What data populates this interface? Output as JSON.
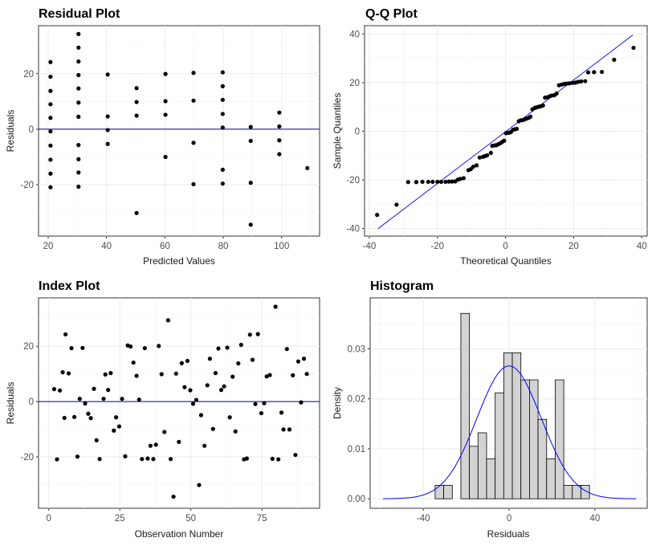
{
  "chart_data": [
    {
      "type": "scatter",
      "title": "Residual Plot",
      "xlabel": "Predicted Values",
      "ylabel": "Residuals",
      "xlim": [
        16.7,
        113.0
      ],
      "ylim": [
        -38.5,
        37.3
      ],
      "xticks": [
        20,
        40,
        60,
        80,
        100
      ],
      "yticks": [
        -20,
        0,
        20
      ],
      "grid": true,
      "hline": 0,
      "hline_color": "#00008b",
      "points": [
        [
          20.8,
          24.2
        ],
        [
          20.8,
          18.9
        ],
        [
          20.8,
          13.8
        ],
        [
          20.8,
          9.0
        ],
        [
          20.8,
          4.1
        ],
        [
          20.8,
          -0.8
        ],
        [
          20.8,
          -5.9
        ],
        [
          20.8,
          -11.0
        ],
        [
          20.8,
          -16.0
        ],
        [
          20.8,
          -20.9
        ],
        [
          30.4,
          34.3
        ],
        [
          30.4,
          29.4
        ],
        [
          30.4,
          24.4
        ],
        [
          30.4,
          19.5
        ],
        [
          30.4,
          14.7
        ],
        [
          30.4,
          9.6
        ],
        [
          30.4,
          4.5
        ],
        [
          30.4,
          -5.7
        ],
        [
          30.4,
          -10.8
        ],
        [
          30.4,
          -15.6
        ],
        [
          30.4,
          -20.7
        ],
        [
          40.4,
          19.7
        ],
        [
          40.4,
          4.6
        ],
        [
          40.4,
          -0.3
        ],
        [
          40.4,
          -5.3
        ],
        [
          50.3,
          14.8
        ],
        [
          50.3,
          9.8
        ],
        [
          50.3,
          4.9
        ],
        [
          50.3,
          -30.2
        ],
        [
          60.2,
          19.9
        ],
        [
          60.2,
          10.1
        ],
        [
          60.2,
          5.2
        ],
        [
          60.2,
          -10.0
        ],
        [
          69.8,
          20.3
        ],
        [
          69.8,
          10.3
        ],
        [
          69.8,
          -4.9
        ],
        [
          69.8,
          -19.8
        ],
        [
          79.8,
          20.5
        ],
        [
          79.8,
          15.5
        ],
        [
          79.8,
          10.6
        ],
        [
          79.8,
          5.5
        ],
        [
          79.8,
          0.6
        ],
        [
          79.8,
          -14.6
        ],
        [
          79.8,
          -19.6
        ],
        [
          89.4,
          0.8
        ],
        [
          89.4,
          -4.2
        ],
        [
          89.4,
          -19.3
        ],
        [
          89.4,
          -34.4
        ],
        [
          99.2,
          6.0
        ],
        [
          99.2,
          1.0
        ],
        [
          99.2,
          -4.0
        ],
        [
          99.2,
          -9.0
        ],
        [
          108.8,
          -14.0
        ]
      ]
    },
    {
      "type": "scatter",
      "title": "Q-Q Plot",
      "xlabel": "Theoretical Quantiles",
      "ylabel": "Sample Quantiles",
      "xlim": [
        -41.4,
        41.6
      ],
      "ylim": [
        -43.1,
        43.4
      ],
      "xticks": [
        -40,
        -20,
        0,
        20,
        40
      ],
      "yticks": [
        -40,
        -20,
        0,
        20,
        40
      ],
      "grid": true,
      "reference_line": [
        [
          -37.4,
          -40.0
        ],
        [
          37.4,
          39.6
        ]
      ],
      "line_color": "#0000ff",
      "points": [
        [
          -37.7,
          -34.4
        ],
        [
          -32.0,
          -30.2
        ],
        [
          -28.6,
          -20.9
        ],
        [
          -26.2,
          -20.9
        ],
        [
          -24.4,
          -20.8
        ],
        [
          -22.7,
          -20.8
        ],
        [
          -21.4,
          -20.8
        ],
        [
          -20.0,
          -20.8
        ],
        [
          -18.9,
          -20.8
        ],
        [
          -17.6,
          -20.8
        ],
        [
          -16.6,
          -20.7
        ],
        [
          -15.7,
          -20.7
        ],
        [
          -14.8,
          -20.6
        ],
        [
          -14.0,
          -19.9
        ],
        [
          -13.3,
          -19.6
        ],
        [
          -12.3,
          -19.3
        ],
        [
          -10.9,
          -16.0
        ],
        [
          -10.2,
          -15.6
        ],
        [
          -9.5,
          -14.6
        ],
        [
          -8.5,
          -14.0
        ],
        [
          -7.6,
          -10.8
        ],
        [
          -6.6,
          -10.5
        ],
        [
          -6.0,
          -10.2
        ],
        [
          -5.4,
          -9.9
        ],
        [
          -4.3,
          -8.9
        ],
        [
          -3.9,
          -6.0
        ],
        [
          -3.1,
          -5.8
        ],
        [
          -2.6,
          -5.7
        ],
        [
          -2.1,
          -5.3
        ],
        [
          -1.5,
          -4.9
        ],
        [
          -1.0,
          -4.4
        ],
        [
          -0.4,
          -3.9
        ],
        [
          0.1,
          -0.8
        ],
        [
          0.6,
          -0.7
        ],
        [
          1.1,
          -0.6
        ],
        [
          1.6,
          -0.3
        ],
        [
          2.2,
          0.6
        ],
        [
          2.7,
          0.8
        ],
        [
          3.3,
          1.0
        ],
        [
          3.9,
          4.1
        ],
        [
          4.5,
          4.5
        ],
        [
          5.1,
          4.6
        ],
        [
          5.6,
          4.9
        ],
        [
          6.2,
          5.2
        ],
        [
          6.8,
          5.5
        ],
        [
          7.3,
          6.0
        ],
        [
          7.9,
          9.0
        ],
        [
          8.6,
          9.6
        ],
        [
          9.1,
          9.8
        ],
        [
          9.8,
          10.1
        ],
        [
          10.4,
          10.3
        ],
        [
          11.0,
          10.6
        ],
        [
          11.6,
          13.8
        ],
        [
          12.3,
          14.0
        ],
        [
          13.0,
          14.4
        ],
        [
          13.6,
          14.7
        ],
        [
          14.3,
          14.8
        ],
        [
          15.0,
          15.5
        ],
        [
          15.7,
          18.9
        ],
        [
          16.5,
          19.2
        ],
        [
          17.3,
          19.5
        ],
        [
          18.0,
          19.6
        ],
        [
          18.8,
          19.7
        ],
        [
          19.7,
          19.9
        ],
        [
          20.5,
          20.0
        ],
        [
          21.3,
          20.3
        ],
        [
          22.2,
          20.5
        ],
        [
          23.4,
          20.6
        ],
        [
          24.3,
          24.2
        ],
        [
          26.0,
          24.3
        ],
        [
          28.3,
          24.4
        ],
        [
          31.9,
          29.4
        ],
        [
          37.6,
          34.3
        ]
      ]
    },
    {
      "type": "scatter",
      "title": "Index Plot",
      "xlabel": "Observation Number",
      "ylabel": "Residuals",
      "xlim": [
        -3.6,
        95.3
      ],
      "ylim": [
        -38.6,
        37.5
      ],
      "xticks": [
        0,
        25,
        50,
        75
      ],
      "yticks": [
        -20,
        0,
        20
      ],
      "grid": true,
      "hline": 0,
      "hline_color": "#00008b",
      "points": [
        [
          1.9,
          4.5
        ],
        [
          2.9,
          -20.9
        ],
        [
          3.9,
          4.0
        ],
        [
          4.9,
          10.6
        ],
        [
          5.5,
          -5.9
        ],
        [
          5.9,
          24.3
        ],
        [
          7.0,
          10.2
        ],
        [
          8.0,
          19.3
        ],
        [
          9.0,
          -5.6
        ],
        [
          10.1,
          -19.9
        ],
        [
          10.9,
          1.0
        ],
        [
          11.9,
          19.4
        ],
        [
          12.8,
          -0.7
        ],
        [
          13.9,
          -4.4
        ],
        [
          14.8,
          -6.0
        ],
        [
          15.9,
          4.6
        ],
        [
          16.8,
          -14.0
        ],
        [
          17.9,
          -20.8
        ],
        [
          19.3,
          1.0
        ],
        [
          19.9,
          9.8
        ],
        [
          20.9,
          4.2
        ],
        [
          21.8,
          10.3
        ],
        [
          22.9,
          -10.5
        ],
        [
          23.7,
          -5.7
        ],
        [
          24.8,
          -9.0
        ],
        [
          25.8,
          1.0
        ],
        [
          26.9,
          -19.8
        ],
        [
          27.8,
          20.3
        ],
        [
          28.8,
          19.9
        ],
        [
          29.8,
          14.1
        ],
        [
          30.9,
          9.3
        ],
        [
          31.8,
          0.7
        ],
        [
          32.8,
          -20.8
        ],
        [
          33.8,
          19.3
        ],
        [
          34.8,
          -20.6
        ],
        [
          35.8,
          -16.0
        ],
        [
          36.8,
          -20.8
        ],
        [
          37.7,
          -15.6
        ],
        [
          38.7,
          20.1
        ],
        [
          39.7,
          9.9
        ],
        [
          40.7,
          -11.0
        ],
        [
          42.0,
          29.4
        ],
        [
          42.9,
          -20.8
        ],
        [
          43.9,
          -34.4
        ],
        [
          44.8,
          10.1
        ],
        [
          45.8,
          -14.6
        ],
        [
          46.8,
          13.9
        ],
        [
          47.8,
          5.2
        ],
        [
          48.8,
          14.7
        ],
        [
          49.8,
          4.1
        ],
        [
          50.8,
          -0.8
        ],
        [
          51.9,
          0.6
        ],
        [
          52.9,
          -30.2
        ],
        [
          53.6,
          -4.9
        ],
        [
          54.8,
          -16.0
        ],
        [
          55.8,
          5.9
        ],
        [
          56.7,
          15.5
        ],
        [
          57.8,
          -9.9
        ],
        [
          58.7,
          10.3
        ],
        [
          59.7,
          19.2
        ],
        [
          60.7,
          4.2
        ],
        [
          61.7,
          5.5
        ],
        [
          62.8,
          19.5
        ],
        [
          63.7,
          -5.7
        ],
        [
          64.7,
          9.0
        ],
        [
          65.7,
          -10.8
        ],
        [
          66.7,
          13.8
        ],
        [
          67.7,
          20.5
        ],
        [
          68.7,
          -20.9
        ],
        [
          69.7,
          -20.6
        ],
        [
          70.8,
          24.2
        ],
        [
          71.7,
          15.1
        ],
        [
          72.7,
          -0.9
        ],
        [
          73.6,
          24.4
        ],
        [
          74.8,
          -4.2
        ],
        [
          75.8,
          -0.6
        ],
        [
          76.7,
          9.1
        ],
        [
          77.8,
          9.6
        ],
        [
          78.7,
          -20.7
        ],
        [
          79.8,
          34.3
        ],
        [
          80.8,
          -20.9
        ],
        [
          81.9,
          -4.0
        ],
        [
          82.6,
          -10.1
        ],
        [
          83.8,
          19.0
        ],
        [
          84.7,
          -10.1
        ],
        [
          85.9,
          9.5
        ],
        [
          86.8,
          -19.3
        ],
        [
          87.8,
          14.5
        ],
        [
          88.8,
          -0.3
        ],
        [
          89.8,
          15.5
        ],
        [
          90.8,
          10.0
        ]
      ]
    },
    {
      "type": "bar",
      "subtype": "histogram",
      "title": "Histogram",
      "xlabel": "Residuals",
      "ylabel": "Density",
      "xlim": [
        -64.8,
        64.4
      ],
      "ylim": [
        -0.0019,
        0.0402
      ],
      "xticks": [
        -40,
        0,
        40
      ],
      "yticks": [
        0.0,
        0.01,
        0.02,
        0.03
      ],
      "ytick_labels": [
        "0.00",
        "0.01",
        "0.02",
        "0.03"
      ],
      "grid": true,
      "bar_fill": "#d3d3d3",
      "bar_stroke": "#000000",
      "bins": [
        {
          "x0": -34.5,
          "x1": -30.5,
          "density": 0.0027
        },
        {
          "x0": -30.5,
          "x1": -26.5,
          "density": 0.0027
        },
        {
          "x0": -26.5,
          "x1": -22.5,
          "density": 0.0
        },
        {
          "x0": -22.5,
          "x1": -18.5,
          "density": 0.0371
        },
        {
          "x0": -18.5,
          "x1": -14.5,
          "density": 0.0105
        },
        {
          "x0": -14.5,
          "x1": -10.5,
          "density": 0.0132
        },
        {
          "x0": -10.5,
          "x1": -6.5,
          "density": 0.008
        },
        {
          "x0": -6.5,
          "x1": -2.5,
          "density": 0.0212
        },
        {
          "x0": -2.5,
          "x1": 1.5,
          "density": 0.0292
        },
        {
          "x0": 1.5,
          "x1": 5.5,
          "density": 0.0292
        },
        {
          "x0": 5.5,
          "x1": 9.5,
          "density": 0.0238
        },
        {
          "x0": 9.5,
          "x1": 13.5,
          "density": 0.0238
        },
        {
          "x0": 13.5,
          "x1": 17.5,
          "density": 0.0159
        },
        {
          "x0": 17.5,
          "x1": 21.5,
          "density": 0.008
        },
        {
          "x0": 21.5,
          "x1": 25.5,
          "density": 0.0238
        },
        {
          "x0": 25.5,
          "x1": 29.5,
          "density": 0.0027
        },
        {
          "x0": 29.5,
          "x1": 33.5,
          "density": 0.0027
        },
        {
          "x0": 33.5,
          "x1": 37.5,
          "density": 0.0027
        }
      ],
      "density_curve": {
        "distribution": "normal",
        "mean": 0.0,
        "sd": 15.0,
        "x_range": [
          -58.8,
          59.3
        ],
        "color": "#0000ff"
      }
    }
  ]
}
